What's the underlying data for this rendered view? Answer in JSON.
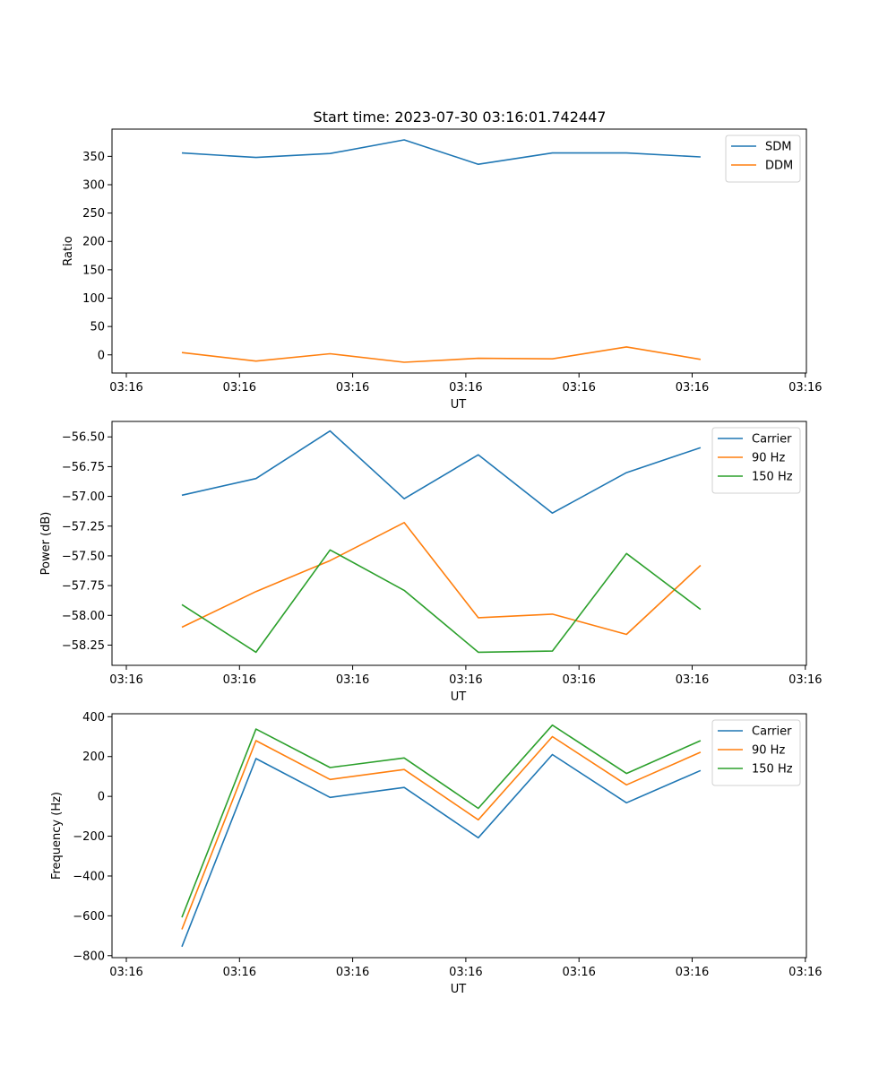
{
  "figure": {
    "title": "Start time: 2023-07-30 03:16:01.742447"
  },
  "colors": {
    "blue": "#1f77b4",
    "orange": "#ff7f0e",
    "green": "#2ca02c"
  },
  "chart_data": [
    {
      "type": "line",
      "xlabel": "UT",
      "ylabel": "Ratio",
      "x": [
        1,
        2,
        3,
        4,
        5,
        6,
        7,
        8
      ],
      "xlim": [
        0.2,
        9.5
      ],
      "x_ticks": [
        0,
        1.5,
        3,
        4.5,
        6,
        7.5,
        9
      ],
      "x_tick_labels": [
        "03:16",
        "03:16",
        "03:16",
        "03:16",
        "03:16",
        "03:16",
        "03:16"
      ],
      "x_tick_positions": [
        0.2,
        1.75,
        3.3,
        4.85,
        6.4,
        7.95,
        9.5
      ],
      "ylim": [
        -32,
        398
      ],
      "y_ticks": [
        0,
        50,
        100,
        150,
        200,
        250,
        300,
        350
      ],
      "series": [
        {
          "name": "SDM",
          "color": "blue",
          "values": [
            356,
            348,
            355,
            379,
            336,
            356,
            356,
            349
          ]
        },
        {
          "name": "DDM",
          "color": "orange",
          "values": [
            4,
            -11,
            2,
            -13,
            -6,
            -7,
            14,
            -8
          ]
        }
      ],
      "legend": "top-right"
    },
    {
      "type": "line",
      "xlabel": "UT",
      "ylabel": "Power (dB)",
      "x": [
        1,
        2,
        3,
        4,
        5,
        6,
        7,
        8
      ],
      "xlim": [
        0.2,
        9.5
      ],
      "x_tick_labels": [
        "03:16",
        "03:16",
        "03:16",
        "03:16",
        "03:16",
        "03:16",
        "03:16"
      ],
      "x_tick_positions": [
        0.2,
        1.75,
        3.3,
        4.85,
        6.4,
        7.95,
        9.5
      ],
      "ylim": [
        -58.42,
        -56.37
      ],
      "y_ticks": [
        -58.25,
        -58.0,
        -57.75,
        -57.5,
        -57.25,
        -57.0,
        -56.75,
        -56.5
      ],
      "y_tick_labels": [
        "−58.25",
        "−58.00",
        "−57.75",
        "−57.50",
        "−57.25",
        "−57.00",
        "−56.75",
        "−56.50"
      ],
      "series": [
        {
          "name": "Carrier",
          "color": "blue",
          "values": [
            -56.99,
            -56.85,
            -56.45,
            -57.02,
            -56.65,
            -57.14,
            -56.8,
            -56.59
          ]
        },
        {
          "name": "90 Hz",
          "color": "orange",
          "values": [
            -58.1,
            -57.8,
            -57.54,
            -57.22,
            -58.02,
            -57.99,
            -58.16,
            -57.58
          ]
        },
        {
          "name": "150 Hz",
          "color": "green",
          "values": [
            -57.91,
            -58.31,
            -57.45,
            -57.79,
            -58.31,
            -58.3,
            -57.48,
            -57.95
          ]
        }
      ],
      "legend": "top-right"
    },
    {
      "type": "line",
      "xlabel": "UT",
      "ylabel": "Frequency (Hz)",
      "x": [
        1,
        2,
        3,
        4,
        5,
        6,
        7,
        8
      ],
      "xlim": [
        0.2,
        9.5
      ],
      "x_tick_labels": [
        "03:16",
        "03:16",
        "03:16",
        "03:16",
        "03:16",
        "03:16",
        "03:16"
      ],
      "x_tick_positions": [
        0.2,
        1.75,
        3.3,
        4.85,
        6.4,
        7.95,
        9.5
      ],
      "ylim": [
        -810,
        415
      ],
      "y_ticks": [
        -800,
        -600,
        -400,
        -200,
        0,
        200,
        400
      ],
      "y_tick_labels": [
        "−800",
        "−600",
        "−400",
        "−200",
        "0",
        "200",
        "400"
      ],
      "series": [
        {
          "name": "Carrier",
          "color": "blue",
          "values": [
            -755,
            190,
            -5,
            45,
            -208,
            210,
            -32,
            130
          ]
        },
        {
          "name": "90 Hz",
          "color": "orange",
          "values": [
            -668,
            280,
            85,
            135,
            -118,
            300,
            58,
            222
          ]
        },
        {
          "name": "150 Hz",
          "color": "green",
          "values": [
            -608,
            338,
            145,
            193,
            -60,
            358,
            115,
            280
          ]
        }
      ],
      "legend": "top-right"
    }
  ]
}
